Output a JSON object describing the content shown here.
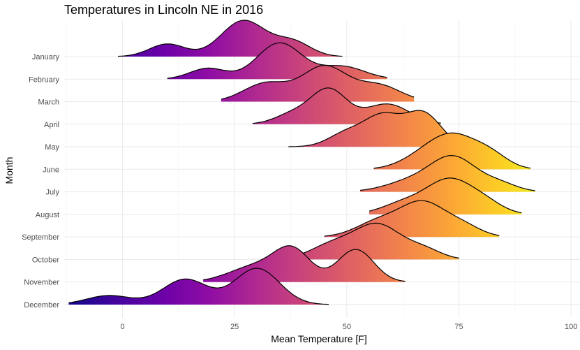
{
  "chart_data": {
    "type": "ridgeline",
    "title": "Temperatures in Lincoln NE in 2016",
    "xlabel": "Mean Temperature [F]",
    "ylabel": "Month",
    "xlim": [
      -13,
      102
    ],
    "xticks": [
      0,
      25,
      50,
      75,
      100
    ],
    "grid": true,
    "colormap": "plasma",
    "color_range": [
      -13,
      95
    ],
    "colors": {
      "low": "#0d0887",
      "mid": "#cc4778",
      "high": "#f0f921"
    },
    "series": [
      {
        "name": "January",
        "min": -1,
        "max": 49,
        "peaks": [
          [
            10,
            4,
            0.35
          ],
          [
            27,
            5,
            1.0
          ],
          [
            38,
            4,
            0.4
          ]
        ]
      },
      {
        "name": "February",
        "min": 10,
        "max": 59,
        "peaks": [
          [
            19,
            4,
            0.3
          ],
          [
            35,
            5,
            1.0
          ],
          [
            49,
            5,
            0.35
          ]
        ]
      },
      {
        "name": "March",
        "min": 22,
        "max": 65,
        "peaks": [
          [
            32,
            5,
            0.45
          ],
          [
            45,
            5,
            0.85
          ],
          [
            57,
            5,
            0.4
          ]
        ]
      },
      {
        "name": "April",
        "min": 29,
        "max": 71,
        "peaks": [
          [
            38,
            4,
            0.25
          ],
          [
            46,
            4,
            0.85
          ],
          [
            59,
            5,
            0.5
          ]
        ]
      },
      {
        "name": "May",
        "min": 37,
        "max": 78,
        "peaks": [
          [
            50,
            4,
            0.35
          ],
          [
            58,
            4,
            0.75
          ],
          [
            67,
            4,
            0.85
          ]
        ]
      },
      {
        "name": "June",
        "min": 56,
        "max": 91,
        "peaks": [
          [
            67,
            5,
            0.4
          ],
          [
            74,
            5,
            1.0
          ],
          [
            82,
            4,
            0.45
          ]
        ]
      },
      {
        "name": "July",
        "min": 53,
        "max": 92,
        "peaks": [
          [
            65,
            6,
            0.35
          ],
          [
            74,
            5,
            1.0
          ],
          [
            84,
            4,
            0.25
          ]
        ]
      },
      {
        "name": "August",
        "min": 55,
        "max": 89,
        "peaks": [
          [
            63,
            5,
            0.35
          ],
          [
            73,
            5,
            1.0
          ],
          [
            81,
            4,
            0.3
          ]
        ]
      },
      {
        "name": "September",
        "min": 45,
        "max": 84,
        "peaks": [
          [
            57,
            5,
            0.45
          ],
          [
            67,
            5,
            1.0
          ],
          [
            76,
            4,
            0.3
          ]
        ]
      },
      {
        "name": "October",
        "min": 31,
        "max": 75,
        "peaks": [
          [
            47,
            5,
            0.45
          ],
          [
            57,
            5,
            1.0
          ],
          [
            67,
            4,
            0.3
          ]
        ]
      },
      {
        "name": "November",
        "min": 18,
        "max": 63,
        "peaks": [
          [
            30,
            6,
            0.45
          ],
          [
            38,
            4,
            0.8
          ],
          [
            52,
            4,
            0.9
          ]
        ]
      },
      {
        "name": "December",
        "min": -12,
        "max": 46,
        "peaks": [
          [
            -3,
            5,
            0.25
          ],
          [
            14,
            5,
            0.7
          ],
          [
            30,
            5,
            1.0
          ]
        ]
      }
    ]
  }
}
